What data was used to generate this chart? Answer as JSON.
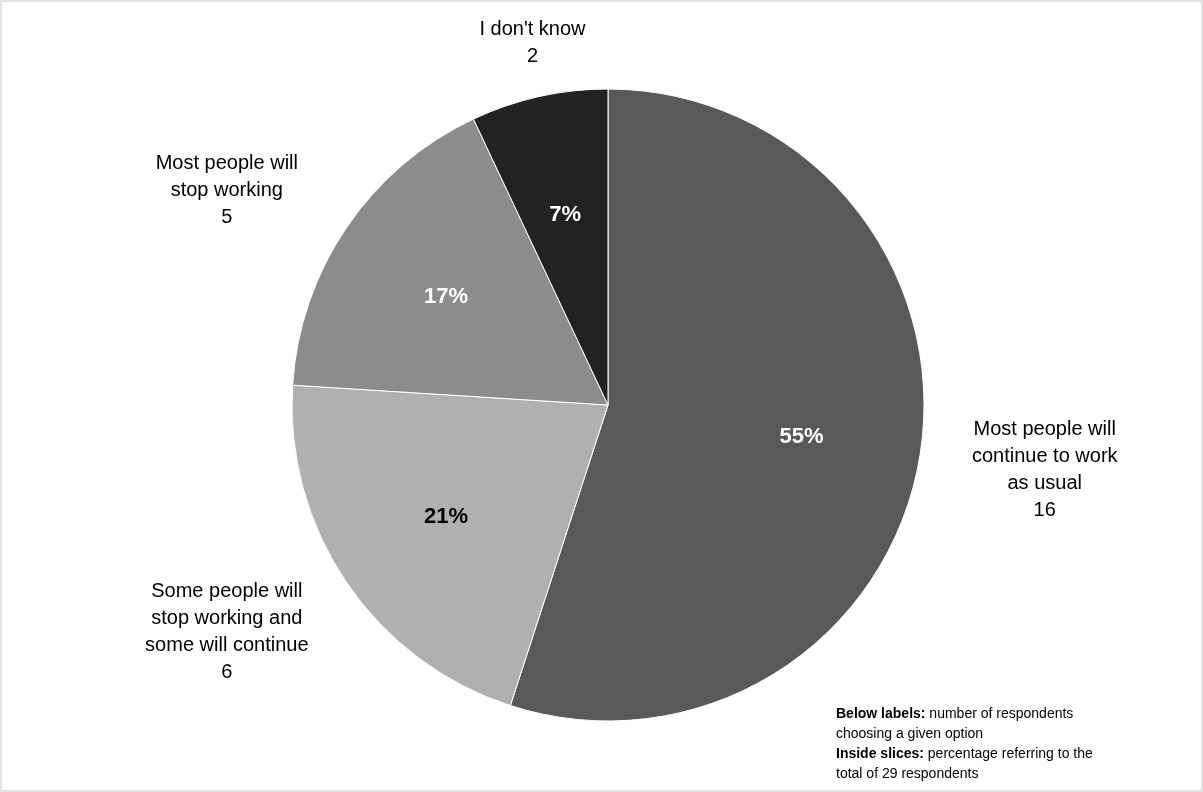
{
  "chart_data": {
    "type": "pie",
    "categories": [
      "Most people will continue to work as usual",
      "Some people will stop working and some will continue",
      "Most people will stop working",
      "I don't know"
    ],
    "values": [
      55,
      21,
      17,
      7
    ],
    "colors": [
      "#595959",
      "#b0b0b0",
      "#8c8c8c",
      "#222222"
    ],
    "value_labels": [
      "55%",
      "21%",
      "17%",
      "7%"
    ],
    "legend": false,
    "annotations": [
      {
        "text": "16",
        "x": "Most people will continue to work as usual"
      },
      {
        "text": "6",
        "x": "Some people will stop working and some will continue"
      },
      {
        "text": "5",
        "x": "Most people will stop working"
      },
      {
        "text": "2",
        "x": "I don't know"
      },
      "Below labels: number of respondents choosing a given option",
      "Inside slices: percentage referring to the total of 29 respondents"
    ]
  }
}
